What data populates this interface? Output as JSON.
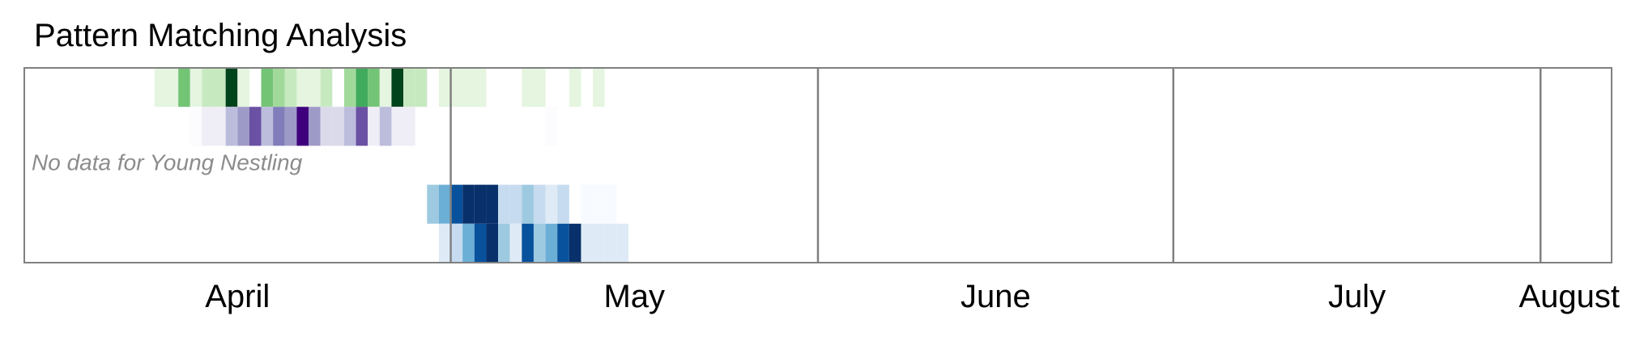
{
  "chart_data": {
    "type": "heatmap",
    "title": "Pattern Matching Analysis",
    "month_labels": [
      "April",
      "May",
      "June",
      "July",
      "August"
    ],
    "month_boundaries": [
      "May 1",
      "Jun 1",
      "Jul 1",
      "Aug 1"
    ],
    "x_range": [
      "Mar 26",
      "Aug 7"
    ],
    "note": "No data for Young Nestling",
    "rows": [
      {
        "colormap": "Greens",
        "cells": [
          {
            "start": "Apr 6",
            "end": "Apr 7",
            "value": 0.15
          },
          {
            "start": "Apr 7",
            "end": "Apr 8",
            "value": 0.15
          },
          {
            "start": "Apr 8",
            "end": "Apr 9",
            "value": 0.45
          },
          {
            "start": "Apr 9",
            "end": "Apr 10",
            "value": 0.08
          },
          {
            "start": "Apr 10",
            "end": "Apr 11",
            "value": 0.25
          },
          {
            "start": "Apr 11",
            "end": "Apr 12",
            "value": 0.25
          },
          {
            "start": "Apr 12",
            "end": "Apr 13",
            "value": 1.0
          },
          {
            "start": "Apr 13",
            "end": "Apr 14",
            "value": 0.15
          },
          {
            "start": "Apr 15",
            "end": "Apr 16",
            "value": 0.55
          },
          {
            "start": "Apr 16",
            "end": "Apr 17",
            "value": 0.4
          },
          {
            "start": "Apr 17",
            "end": "Apr 18",
            "value": 0.25
          },
          {
            "start": "Apr 18",
            "end": "Apr 19",
            "value": 0.15
          },
          {
            "start": "Apr 19",
            "end": "Apr 20",
            "value": 0.15
          },
          {
            "start": "Apr 20",
            "end": "Apr 21",
            "value": 0.25
          },
          {
            "start": "Apr 22",
            "end": "Apr 23",
            "value": 0.35
          },
          {
            "start": "Apr 23",
            "end": "Apr 24",
            "value": 0.65
          },
          {
            "start": "Apr 24",
            "end": "Apr 25",
            "value": 0.45
          },
          {
            "start": "Apr 25",
            "end": "Apr 26",
            "value": 0.15
          },
          {
            "start": "Apr 26",
            "end": "Apr 27",
            "value": 0.95
          },
          {
            "start": "Apr 27",
            "end": "Apr 28",
            "value": 0.25
          },
          {
            "start": "Apr 28",
            "end": "Apr 29",
            "value": 0.25
          },
          {
            "start": "Apr 30",
            "end": "May 1",
            "value": 0.12
          },
          {
            "start": "May 1",
            "end": "May 2",
            "value": 0.12
          },
          {
            "start": "May 2",
            "end": "May 3",
            "value": 0.12
          },
          {
            "start": "May 3",
            "end": "May 4",
            "value": 0.12
          },
          {
            "start": "May 7",
            "end": "May 8",
            "value": 0.12
          },
          {
            "start": "May 8",
            "end": "May 9",
            "value": 0.12
          },
          {
            "start": "May 11",
            "end": "May 12",
            "value": 0.12
          },
          {
            "start": "May 13",
            "end": "May 14",
            "value": 0.12
          }
        ]
      },
      {
        "colormap": "Purples",
        "cells": [
          {
            "start": "Apr 9",
            "end": "Apr 10",
            "value": 0.05
          },
          {
            "start": "Apr 10",
            "end": "Apr 11",
            "value": 0.15
          },
          {
            "start": "Apr 11",
            "end": "Apr 12",
            "value": 0.15
          },
          {
            "start": "Apr 12",
            "end": "Apr 13",
            "value": 0.35
          },
          {
            "start": "Apr 13",
            "end": "Apr 14",
            "value": 0.55
          },
          {
            "start": "Apr 14",
            "end": "Apr 15",
            "value": 0.7
          },
          {
            "start": "Apr 15",
            "end": "Apr 16",
            "value": 0.35
          },
          {
            "start": "Apr 16",
            "end": "Apr 17",
            "value": 0.65
          },
          {
            "start": "Apr 17",
            "end": "Apr 18",
            "value": 0.45
          },
          {
            "start": "Apr 18",
            "end": "Apr 19",
            "value": 1.0
          },
          {
            "start": "Apr 19",
            "end": "Apr 20",
            "value": 0.55
          },
          {
            "start": "Apr 20",
            "end": "Apr 21",
            "value": 0.2
          },
          {
            "start": "Apr 21",
            "end": "Apr 22",
            "value": 0.3
          },
          {
            "start": "Apr 22",
            "end": "Apr 23",
            "value": 0.35
          },
          {
            "start": "Apr 23",
            "end": "Apr 24",
            "value": 0.75
          },
          {
            "start": "Apr 24",
            "end": "Apr 25",
            "value": 0.1
          },
          {
            "start": "Apr 25",
            "end": "Apr 26",
            "value": 0.35
          },
          {
            "start": "Apr 26",
            "end": "Apr 27",
            "value": 0.12
          },
          {
            "start": "Apr 27",
            "end": "Apr 28",
            "value": 0.15
          },
          {
            "start": "May 9",
            "end": "May 10",
            "value": 0.05
          }
        ]
      },
      {
        "colormap": "none",
        "cells": []
      },
      {
        "colormap": "Blues",
        "cells": [
          {
            "start": "Apr 29",
            "end": "Apr 30",
            "value": 0.35
          },
          {
            "start": "Apr 30",
            "end": "May 1",
            "value": 0.55
          },
          {
            "start": "May 1",
            "end": "May 2",
            "value": 0.85
          },
          {
            "start": "May 2",
            "end": "May 3",
            "value": 1.0
          },
          {
            "start": "May 3",
            "end": "May 4",
            "value": 1.0
          },
          {
            "start": "May 4",
            "end": "May 5",
            "value": 1.0
          },
          {
            "start": "May 5",
            "end": "May 6",
            "value": 0.25
          },
          {
            "start": "May 6",
            "end": "May 7",
            "value": 0.25
          },
          {
            "start": "May 7",
            "end": "May 8",
            "value": 0.4
          },
          {
            "start": "May 8",
            "end": "May 9",
            "value": 0.2
          },
          {
            "start": "May 9",
            "end": "May 10",
            "value": 0.15
          },
          {
            "start": "May 10",
            "end": "May 11",
            "value": 0.2
          },
          {
            "start": "May 12",
            "end": "May 13",
            "value": 0.05
          },
          {
            "start": "May 13",
            "end": "May 14",
            "value": 0.05
          },
          {
            "start": "May 14",
            "end": "May 15",
            "value": 0.05
          }
        ]
      },
      {
        "colormap": "Blues",
        "cells": [
          {
            "start": "Apr 30",
            "end": "May 1",
            "value": 0.08
          },
          {
            "start": "May 1",
            "end": "May 2",
            "value": 0.3
          },
          {
            "start": "May 2",
            "end": "May 3",
            "value": 0.5
          },
          {
            "start": "May 3",
            "end": "May 4",
            "value": 0.85
          },
          {
            "start": "May 4",
            "end": "May 5",
            "value": 1.0
          },
          {
            "start": "May 5",
            "end": "May 6",
            "value": 0.35
          },
          {
            "start": "May 6",
            "end": "May 7",
            "value": 0.08
          },
          {
            "start": "May 7",
            "end": "May 8",
            "value": 0.85
          },
          {
            "start": "May 8",
            "end": "May 9",
            "value": 0.35
          },
          {
            "start": "May 9",
            "end": "May 10",
            "value": 0.55
          },
          {
            "start": "May 10",
            "end": "May 11",
            "value": 0.9
          },
          {
            "start": "May 11",
            "end": "May 12",
            "value": 1.0
          },
          {
            "start": "May 12",
            "end": "May 13",
            "value": 0.08
          },
          {
            "start": "May 13",
            "end": "May 14",
            "value": 0.08
          },
          {
            "start": "May 14",
            "end": "May 15",
            "value": 0.12
          },
          {
            "start": "May 15",
            "end": "May 16",
            "value": 0.08
          }
        ]
      }
    ],
    "colors": {
      "Greens": [
        "#f7fcf5",
        "#e5f5e0",
        "#c7e9c0",
        "#a1d99b",
        "#74c476",
        "#41ab5d",
        "#238b45",
        "#006d2c",
        "#00441b"
      ],
      "Purples": [
        "#fcfbfd",
        "#efedf5",
        "#dadaeb",
        "#bcbddc",
        "#9e9ac8",
        "#807dba",
        "#6a51a3",
        "#54278f",
        "#3f007d"
      ],
      "Blues": [
        "#f7fbff",
        "#deebf7",
        "#c6dbef",
        "#9ecae1",
        "#6baed6",
        "#4292c6",
        "#2171b5",
        "#08519c",
        "#08306b"
      ],
      "frame": "#808080",
      "boundary": "#808080"
    }
  }
}
